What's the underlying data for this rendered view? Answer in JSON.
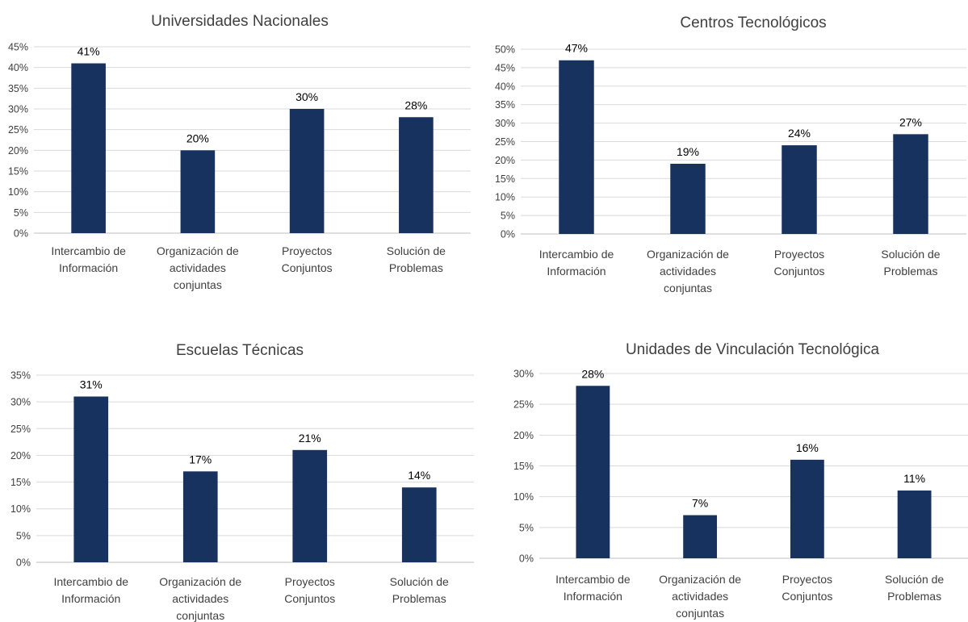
{
  "colors": {
    "bar": "#17325e",
    "grid": "#d9d9d9",
    "axis": "#bfbfbf"
  },
  "chart_data": [
    {
      "type": "bar",
      "title": "Universidades Nacionales",
      "categories": [
        [
          "Intercambio de",
          "Información"
        ],
        [
          "Organización de",
          "actividades",
          "conjuntas"
        ],
        [
          "Proyectos",
          "Conjuntos"
        ],
        [
          "Solución de",
          "Problemas"
        ]
      ],
      "values": [
        41,
        20,
        30,
        28
      ],
      "data_labels": [
        "41%",
        "20%",
        "30%",
        "28%"
      ],
      "ylim": [
        0,
        45
      ],
      "yticks": [
        0,
        5,
        10,
        15,
        20,
        25,
        30,
        35,
        40,
        45
      ],
      "ytick_labels": [
        "0%",
        "5%",
        "10%",
        "15%",
        "20%",
        "25%",
        "30%",
        "35%",
        "40%",
        "45%"
      ],
      "grid": true
    },
    {
      "type": "bar",
      "title": "Centros Tecnológicos",
      "categories": [
        [
          "Intercambio de",
          "Información"
        ],
        [
          "Organización de",
          "actividades",
          "conjuntas"
        ],
        [
          "Proyectos",
          "Conjuntos"
        ],
        [
          "Solución de",
          "Problemas"
        ]
      ],
      "values": [
        47,
        19,
        24,
        27
      ],
      "data_labels": [
        "47%",
        "19%",
        "24%",
        "27%"
      ],
      "ylim": [
        0,
        50
      ],
      "yticks": [
        0,
        5,
        10,
        15,
        20,
        25,
        30,
        35,
        40,
        45,
        50
      ],
      "ytick_labels": [
        "0%",
        "5%",
        "10%",
        "15%",
        "20%",
        "25%",
        "30%",
        "35%",
        "40%",
        "45%",
        "50%"
      ],
      "grid": true
    },
    {
      "type": "bar",
      "title": "Escuelas Técnicas",
      "categories": [
        [
          "Intercambio de",
          "Información"
        ],
        [
          "Organización de",
          "actividades",
          "conjuntas"
        ],
        [
          "Proyectos",
          "Conjuntos"
        ],
        [
          "Solución de",
          "Problemas"
        ]
      ],
      "values": [
        31,
        17,
        21,
        14
      ],
      "data_labels": [
        "31%",
        "17%",
        "21%",
        "14%"
      ],
      "ylim": [
        0,
        35
      ],
      "yticks": [
        0,
        5,
        10,
        15,
        20,
        25,
        30,
        35
      ],
      "ytick_labels": [
        "0%",
        "5%",
        "10%",
        "15%",
        "20%",
        "25%",
        "30%",
        "35%"
      ],
      "grid": true
    },
    {
      "type": "bar",
      "title": "Unidades de Vinculación Tecnológica",
      "categories": [
        [
          "Intercambio de",
          "Información"
        ],
        [
          "Organización de",
          "actividades",
          "conjuntas"
        ],
        [
          "Proyectos",
          "Conjuntos"
        ],
        [
          "Solución de",
          "Problemas"
        ]
      ],
      "values": [
        28,
        7,
        16,
        11
      ],
      "data_labels": [
        "28%",
        "7%",
        "16%",
        "11%"
      ],
      "ylim": [
        0,
        30
      ],
      "yticks": [
        0,
        5,
        10,
        15,
        20,
        25,
        30
      ],
      "ytick_labels": [
        "0%",
        "5%",
        "10%",
        "15%",
        "20%",
        "25%",
        "30%"
      ],
      "grid": true
    }
  ]
}
